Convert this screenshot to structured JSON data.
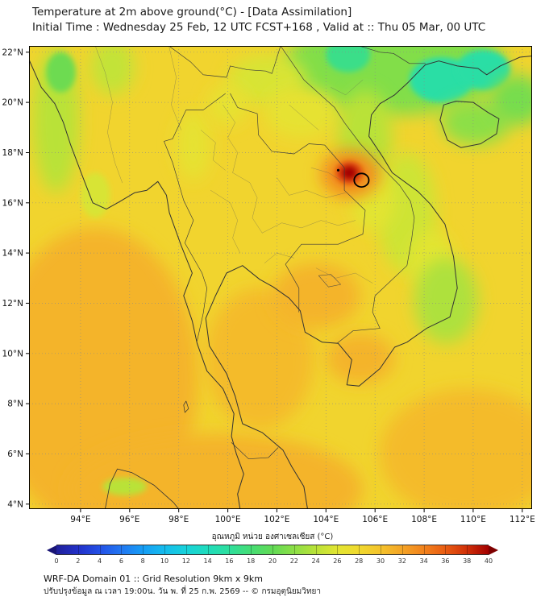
{
  "header": {
    "title": "Temperature at 2m above ground(°C) - [Data Assimilation]",
    "subtitle": "Initial Time : Wednesday 25 Feb, 12 UTC FCST+168 , Valid at :: Thu 05 Mar, 00 UTC"
  },
  "colorbar": {
    "label": "อุณหภูมิ หน่วย องศาเซลเซียส (°C)",
    "ticks": [
      0,
      2,
      4,
      6,
      8,
      10,
      12,
      14,
      16,
      18,
      20,
      22,
      24,
      26,
      28,
      30,
      32,
      34,
      36,
      38,
      40
    ],
    "scale": [
      [
        0,
        "#20209a"
      ],
      [
        2,
        "#2230c8"
      ],
      [
        4,
        "#2350e6"
      ],
      [
        6,
        "#2277f2"
      ],
      [
        8,
        "#169df5"
      ],
      [
        10,
        "#15bced"
      ],
      [
        12,
        "#17d2da"
      ],
      [
        14,
        "#1fdcbc"
      ],
      [
        16,
        "#2edf9d"
      ],
      [
        18,
        "#45dd74"
      ],
      [
        20,
        "#62da55"
      ],
      [
        22,
        "#8cdf46"
      ],
      [
        24,
        "#b9e238"
      ],
      [
        26,
        "#e2e532"
      ],
      [
        28,
        "#f0d92e"
      ],
      [
        30,
        "#f4c32c"
      ],
      [
        32,
        "#f4a426"
      ],
      [
        34,
        "#f2821c"
      ],
      [
        36,
        "#e95c12"
      ],
      [
        38,
        "#d03008"
      ],
      [
        40,
        "#a40000"
      ]
    ],
    "under_color": "#191575",
    "over_color": "#7e0000"
  },
  "footer": {
    "line1": "WRF-DA Domain 01 :: Grid Resolution 9km x 9km",
    "line2": "ปรับปรุงข้อมูล ณ เวลา 19:00น. วัน พ. ที่ 25 ก.พ. 2569 -- © กรมอุตุนิยมวิทยา"
  },
  "chart_data": {
    "type": "heatmap",
    "title": "Temperature at 2m above ground (°C) - Data Assimilation, WRF-DA Domain 01",
    "unit": "°C",
    "scale_range": [
      0,
      40
    ],
    "lon_range": [
      91.9,
      112.4
    ],
    "lat_range": [
      3.8,
      22.25
    ],
    "x_tick_values": [
      94,
      96,
      98,
      100,
      102,
      104,
      106,
      108,
      110,
      112
    ],
    "x_tick_labels": [
      "94°E",
      "96°E",
      "98°E",
      "100°E",
      "102°E",
      "104°E",
      "106°E",
      "108°E",
      "110°E",
      "112°E"
    ],
    "y_tick_values": [
      4,
      6,
      8,
      10,
      12,
      14,
      16,
      18,
      20,
      22
    ],
    "y_tick_labels": [
      "4°N",
      "6°N",
      "8°N",
      "10°N",
      "12°N",
      "14°N",
      "16°N",
      "18°N",
      "20°N",
      "22°N"
    ],
    "grid": "dotted",
    "base_temp_c": 28.5,
    "features": [
      {
        "name": "warm-andaman-sea",
        "lon": 94.6,
        "lat": 9.0,
        "rx": 4.2,
        "ry": 6.0,
        "t": 31,
        "blur": "big"
      },
      {
        "name": "warm-south-strip",
        "lon": 99.5,
        "lat": 4.6,
        "rx": 6.0,
        "ry": 2.2,
        "t": 31,
        "blur": "big"
      },
      {
        "name": "warm-gulf-of-thailand",
        "lon": 101.3,
        "lat": 9.8,
        "rx": 2.2,
        "ry": 2.8,
        "t": 30.5,
        "blur": "big"
      },
      {
        "name": "warm-southeast-sea",
        "lon": 109.8,
        "lat": 6.0,
        "rx": 3.6,
        "ry": 2.6,
        "t": 30.5,
        "blur": "big"
      },
      {
        "name": "warm-cambodia-coast",
        "lon": 103.6,
        "lat": 12.3,
        "rx": 1.8,
        "ry": 1.3,
        "t": 31,
        "blur": "big"
      },
      {
        "name": "warm-mekong-delta",
        "lon": 105.4,
        "lat": 9.8,
        "rx": 1.4,
        "ry": 1.0,
        "t": 31,
        "blur": "big"
      },
      {
        "name": "cool-west-myanmar-band",
        "lon": 93.0,
        "lat": 19.3,
        "rx": 0.95,
        "ry": 2.9,
        "t": 24,
        "blur": "big"
      },
      {
        "name": "cool-myanmar-spot",
        "lon": 93.2,
        "lat": 21.2,
        "rx": 0.6,
        "ry": 0.8,
        "t": 20.5,
        "blur": "small"
      },
      {
        "name": "cool-irrawaddy-patch",
        "lon": 94.6,
        "lat": 16.3,
        "rx": 0.6,
        "ry": 0.9,
        "t": 25.5,
        "blur": "small"
      },
      {
        "name": "cool-east-myanmar",
        "lon": 95.3,
        "lat": 21.4,
        "rx": 0.9,
        "ry": 1.1,
        "t": 24.5,
        "blur": "big"
      },
      {
        "name": "cool-north-vietnam-region",
        "lon": 106.8,
        "lat": 21.4,
        "rx": 4.6,
        "ry": 1.9,
        "t": 21.5,
        "blur": "big"
      },
      {
        "name": "cold-red-river-spot",
        "lon": 104.9,
        "lat": 21.9,
        "rx": 0.9,
        "ry": 0.7,
        "t": 17,
        "blur": "small"
      },
      {
        "name": "cold-gulf-of-tonkin-spot",
        "lon": 108.7,
        "lat": 20.9,
        "rx": 1.3,
        "ry": 0.9,
        "t": 15.5,
        "blur": "small"
      },
      {
        "name": "cold-guangxi-spot",
        "lon": 110.4,
        "lat": 21.3,
        "rx": 1.1,
        "ry": 0.8,
        "t": 15.5,
        "blur": "small"
      },
      {
        "name": "cool-hainan-south",
        "lon": 110.1,
        "lat": 19.2,
        "rx": 1.4,
        "ry": 0.9,
        "t": 22,
        "blur": "big"
      },
      {
        "name": "cool-east-of-hainan",
        "lon": 111.8,
        "lat": 20.1,
        "rx": 1.1,
        "ry": 1.0,
        "t": 21,
        "blur": "big"
      },
      {
        "name": "cool-north-laos",
        "lon": 101.6,
        "lat": 20.9,
        "rx": 1.6,
        "ry": 1.0,
        "t": 25.5,
        "blur": "big"
      },
      {
        "name": "cool-upper-laos-band",
        "lon": 103.0,
        "lat": 19.6,
        "rx": 1.5,
        "ry": 1.0,
        "t": 26.5,
        "blur": "big"
      },
      {
        "name": "cool-annamite-belt",
        "lon": 105.6,
        "lat": 18.6,
        "rx": 1.1,
        "ry": 1.9,
        "t": 24,
        "blur": "big"
      },
      {
        "name": "cool-central-vietnam-coast",
        "lon": 107.3,
        "lat": 15.6,
        "rx": 1.2,
        "ry": 2.4,
        "t": 25,
        "blur": "big"
      },
      {
        "name": "cool-quang-binh-green",
        "lon": 105.9,
        "lat": 16.1,
        "rx": 0.9,
        "ry": 1.2,
        "t": 26,
        "blur": "big"
      },
      {
        "name": "cool-coast-13n",
        "lon": 108.3,
        "lat": 13.7,
        "rx": 0.9,
        "ry": 1.2,
        "t": 26,
        "blur": "big"
      },
      {
        "name": "cool-south-vietnam-sea",
        "lon": 108.9,
        "lat": 12.1,
        "rx": 1.3,
        "ry": 1.7,
        "t": 23.5,
        "blur": "big"
      },
      {
        "name": "cool-thai-highland",
        "lon": 98.6,
        "lat": 18.3,
        "rx": 0.7,
        "ry": 1.4,
        "t": 26.5,
        "blur": "big"
      },
      {
        "name": "cool-north-thailand",
        "lon": 100.0,
        "lat": 19.9,
        "rx": 0.8,
        "ry": 0.8,
        "t": 26.5,
        "blur": "big"
      },
      {
        "name": "cool-sumatra-ridge",
        "lon": 95.8,
        "lat": 4.7,
        "rx": 0.9,
        "ry": 0.35,
        "t": 24,
        "blur": "small"
      },
      {
        "name": "hot-halo",
        "lon": 105.0,
        "lat": 17.15,
        "rx": 1.2,
        "ry": 0.95,
        "t": 33.5,
        "blur": "big"
      },
      {
        "name": "hot-core-outer",
        "lon": 104.95,
        "lat": 17.2,
        "rx": 0.55,
        "ry": 0.45,
        "t": 37,
        "blur": "small"
      },
      {
        "name": "hot-core-max",
        "lon": 104.95,
        "lat": 17.2,
        "rx": 0.3,
        "ry": 0.25,
        "t": 40,
        "blur": "small"
      }
    ],
    "max_contour": {
      "lon": 105.45,
      "lat": 16.9,
      "rx_deg": 0.3,
      "ry_deg": 0.27
    },
    "spot_marker": {
      "lon": 104.5,
      "lat": 17.3
    }
  }
}
